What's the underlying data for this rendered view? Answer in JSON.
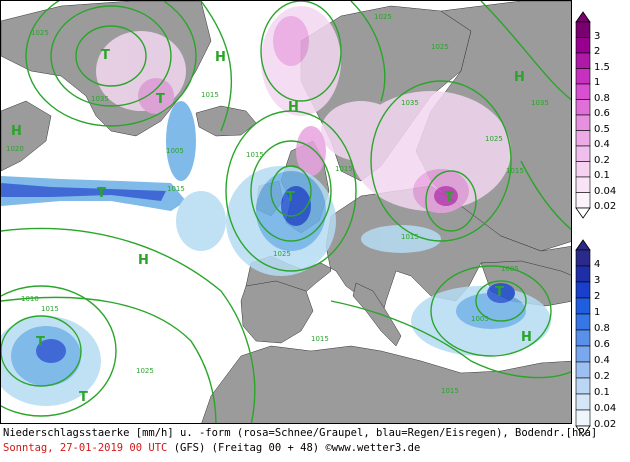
{
  "map": {
    "pressure_labels": [
      {
        "text": "H",
        "kind": "high"
      },
      {
        "text": "H",
        "kind": "high"
      },
      {
        "text": "H",
        "kind": "high"
      },
      {
        "text": "H",
        "kind": "high"
      },
      {
        "text": "H",
        "kind": "high"
      },
      {
        "text": "H",
        "kind": "high"
      },
      {
        "text": "T",
        "kind": "low"
      },
      {
        "text": "T",
        "kind": "low"
      },
      {
        "text": "T",
        "kind": "low"
      },
      {
        "text": "T",
        "kind": "low"
      },
      {
        "text": "T",
        "kind": "low"
      },
      {
        "text": "T",
        "kind": "low"
      },
      {
        "text": "T",
        "kind": "low"
      },
      {
        "text": "T",
        "kind": "low"
      }
    ],
    "isobar_labels": [
      "1025",
      "1025",
      "1025",
      "1015",
      "1035",
      "1035",
      "1035",
      "1015",
      "1005",
      "1015",
      "1015",
      "1025",
      "1015",
      "1025",
      "1015",
      "1005",
      "1005",
      "1015",
      "1015",
      "1015",
      "1025",
      "1020",
      "1010"
    ],
    "colors": {
      "land": "#9b9b9b",
      "sea": "#ffffff",
      "isobar": "#2aa52a",
      "snow_light": "#f3d7f0",
      "snow_mid": "#e8a4e0",
      "snow_dark": "#c040b8",
      "rain_light": "#b6dcf2",
      "rain_mid": "#6aaee6",
      "rain_dark": "#1f4fd0"
    }
  },
  "legend_snow": {
    "values": [
      "3",
      "2",
      "1.5",
      "1",
      "0.8",
      "0.6",
      "0.5",
      "0.4",
      "0.2",
      "0.1",
      "0.04",
      "0.02"
    ],
    "colors": [
      "#7a0070",
      "#9a0090",
      "#b018a8",
      "#c830c0",
      "#d850d0",
      "#e070d8",
      "#e690e0",
      "#ecaae6",
      "#f0bfec",
      "#f4d2f0",
      "#f8e4f5",
      "#fcf2fa"
    ]
  },
  "legend_rain": {
    "values": [
      "4",
      "3",
      "2",
      "1",
      "0.8",
      "0.6",
      "0.4",
      "0.2",
      "0.1",
      "0.04",
      "0.02"
    ],
    "colors": [
      "#2a2a8a",
      "#1e2ea8",
      "#1a3fcc",
      "#1f5ee0",
      "#3676e6",
      "#5890ea",
      "#7aa8ee",
      "#9cc0f2",
      "#bcd6f6",
      "#d6e6f9",
      "#eef5fc"
    ]
  },
  "footer": {
    "line1": "Niederschlagsstaerke [mm/h] u. -form (rosa=Schnee/Graupel, blau=Regen/Eisregen), Bodendr.[hPa]",
    "date": "Sonntag, 27-01-2019  00 UTC",
    "model": "(GFS)  (Freitag 00 + 48)",
    "site": "©www.wetter3.de"
  }
}
